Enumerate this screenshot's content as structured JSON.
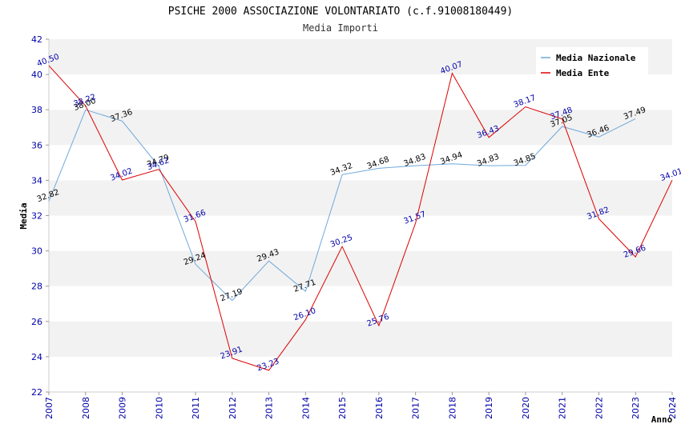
{
  "chart_data": {
    "type": "line",
    "title": "PSICHE 2000 ASSOCIAZIONE VOLONTARIATO (c.f.91008180449)",
    "subtitle": "Media Importi",
    "xlabel": "Anno",
    "ylabel": "Media",
    "ylim": [
      22,
      42
    ],
    "yticks": [
      22,
      24,
      26,
      28,
      30,
      32,
      34,
      36,
      38,
      40,
      42
    ],
    "x": [
      "2007",
      "2008",
      "2009",
      "2010",
      "2011",
      "2012",
      "2013",
      "2014",
      "2015",
      "2016",
      "2017",
      "2018",
      "2019",
      "2020",
      "2021",
      "2022",
      "2023",
      "2024"
    ],
    "legend_position": "top-right",
    "series": [
      {
        "name": "Media Nazionale",
        "color": "#6fa8dc",
        "values": [
          32.82,
          38.0,
          37.36,
          34.79,
          29.24,
          27.19,
          29.43,
          27.71,
          34.32,
          34.68,
          34.83,
          34.94,
          34.83,
          34.85,
          37.05,
          36.46,
          37.49,
          null
        ],
        "labels": [
          "32.82",
          "38.00",
          "37.36",
          "34.79",
          "29.24",
          "27.19",
          "29.43",
          "27.71",
          "34.32",
          "34.68",
          "34.83",
          "34.94",
          "34.83",
          "34.85",
          "37.05",
          "36.46",
          "37.49",
          ""
        ]
      },
      {
        "name": "Media Ente",
        "color": "#dd0000",
        "values": [
          40.5,
          38.22,
          34.02,
          34.62,
          31.66,
          23.91,
          23.23,
          26.1,
          30.25,
          25.76,
          31.57,
          40.07,
          36.43,
          38.17,
          37.48,
          31.82,
          29.66,
          34.01
        ],
        "labels": [
          "40.50",
          "38.22",
          "34.02",
          "34.62",
          "31.66",
          "23.91",
          "23.23",
          "26.10",
          "30.25",
          "25.76",
          "31.57",
          "40.07",
          "36.43",
          "38.17",
          "37.48",
          "31.82",
          "29.66",
          "34.01"
        ]
      }
    ]
  }
}
